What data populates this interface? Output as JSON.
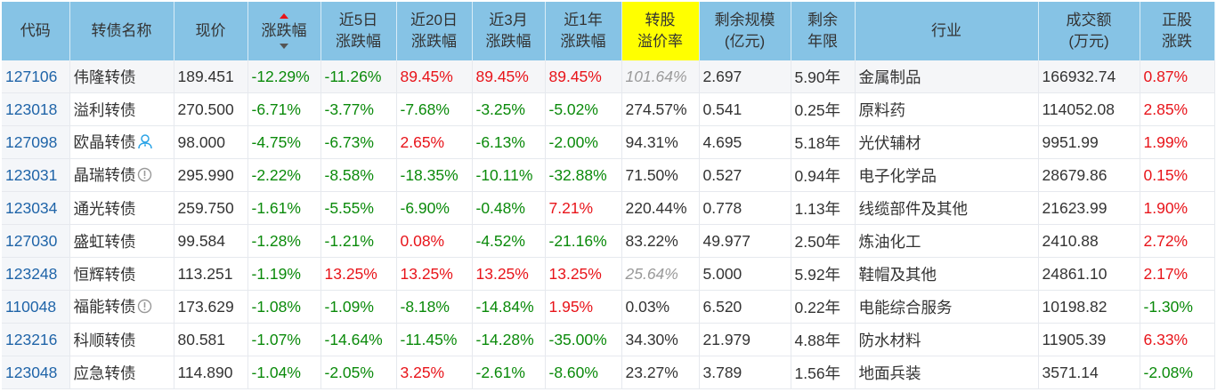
{
  "headers": [
    "代码",
    "转债名称",
    "现价",
    "涨跌幅",
    "近5日\n涨跌幅",
    "近20日\n涨跌幅",
    "近3月\n涨跌幅",
    "近1年\n涨跌幅",
    "转股\n溢价率",
    "剩余规模\n(亿元)",
    "剩余\n年限",
    "行业",
    "成交额\n(万元)",
    "正股\n涨跌"
  ],
  "sort": {
    "column": "涨跌幅",
    "direction": "desc"
  },
  "colors": {
    "header": "#86c3e5",
    "highlight": "#ffff00",
    "up": "#e8141a",
    "down": "#0a8a0a"
  },
  "rows": [
    {
      "code": "127106",
      "name": "伟隆转债",
      "icon": "",
      "price": "189.451",
      "chg": "-12.29%",
      "d5": "-11.26%",
      "d20": "89.45%",
      "m3": "89.45%",
      "y1": "89.45%",
      "prem": "101.64%",
      "prem_italic": true,
      "size": "2.697",
      "years": "5.90年",
      "ind": "金属制品",
      "vol": "166932.74",
      "stk": "0.87%"
    },
    {
      "code": "123018",
      "name": "溢利转债",
      "icon": "",
      "price": "270.500",
      "chg": "-6.71%",
      "d5": "-3.77%",
      "d20": "-7.68%",
      "m3": "-3.25%",
      "y1": "-5.02%",
      "prem": "274.57%",
      "prem_italic": false,
      "size": "0.541",
      "years": "0.25年",
      "ind": "原料药",
      "vol": "114052.08",
      "stk": "2.85%"
    },
    {
      "code": "127098",
      "name": "欧晶转债",
      "icon": "person-icon",
      "price": "98.000",
      "chg": "-4.75%",
      "d5": "-6.73%",
      "d20": "2.65%",
      "m3": "-6.13%",
      "y1": "-2.00%",
      "prem": "94.31%",
      "prem_italic": false,
      "size": "4.695",
      "years": "5.18年",
      "ind": "光伏辅材",
      "vol": "9951.99",
      "stk": "1.99%"
    },
    {
      "code": "123031",
      "name": "晶瑞转债",
      "icon": "alert-icon",
      "price": "295.990",
      "chg": "-2.22%",
      "d5": "-8.58%",
      "d20": "-18.35%",
      "m3": "-10.11%",
      "y1": "-32.88%",
      "prem": "71.50%",
      "prem_italic": false,
      "size": "0.527",
      "years": "0.94年",
      "ind": "电子化学品",
      "vol": "28679.86",
      "stk": "0.15%"
    },
    {
      "code": "123034",
      "name": "通光转债",
      "icon": "",
      "price": "259.750",
      "chg": "-1.61%",
      "d5": "-5.55%",
      "d20": "-6.90%",
      "m3": "-0.48%",
      "y1": "7.21%",
      "prem": "220.44%",
      "prem_italic": false,
      "size": "0.778",
      "years": "1.13年",
      "ind": "线缆部件及其他",
      "vol": "21623.99",
      "stk": "1.90%"
    },
    {
      "code": "127030",
      "name": "盛虹转债",
      "icon": "",
      "price": "99.584",
      "chg": "-1.28%",
      "d5": "-1.21%",
      "d20": "0.08%",
      "m3": "-4.52%",
      "y1": "-21.16%",
      "prem": "83.22%",
      "prem_italic": false,
      "size": "49.977",
      "years": "2.50年",
      "ind": "炼油化工",
      "vol": "2410.88",
      "stk": "2.72%"
    },
    {
      "code": "123248",
      "name": "恒辉转债",
      "icon": "",
      "price": "113.251",
      "chg": "-1.19%",
      "d5": "13.25%",
      "d20": "13.25%",
      "m3": "13.25%",
      "y1": "13.25%",
      "prem": "25.64%",
      "prem_italic": true,
      "size": "5.000",
      "years": "5.92年",
      "ind": "鞋帽及其他",
      "vol": "24861.10",
      "stk": "2.17%"
    },
    {
      "code": "110048",
      "name": "福能转债",
      "icon": "alert-icon",
      "price": "173.629",
      "chg": "-1.08%",
      "d5": "-1.09%",
      "d20": "-8.18%",
      "m3": "-14.84%",
      "y1": "1.95%",
      "prem": "0.03%",
      "prem_italic": false,
      "size": "6.520",
      "years": "0.22年",
      "ind": "电能综合服务",
      "vol": "10198.82",
      "stk": "-1.30%"
    },
    {
      "code": "123216",
      "name": "科顺转债",
      "icon": "",
      "price": "80.581",
      "chg": "-1.07%",
      "d5": "-14.64%",
      "d20": "-11.45%",
      "m3": "-14.28%",
      "y1": "-35.00%",
      "prem": "34.30%",
      "prem_italic": false,
      "size": "21.979",
      "years": "4.88年",
      "ind": "防水材料",
      "vol": "11905.39",
      "stk": "6.33%"
    },
    {
      "code": "123048",
      "name": "应急转债",
      "icon": "",
      "price": "114.890",
      "chg": "-1.04%",
      "d5": "-2.05%",
      "d20": "3.25%",
      "m3": "-2.61%",
      "y1": "-8.60%",
      "prem": "23.27%",
      "prem_italic": false,
      "size": "3.789",
      "years": "1.56年",
      "ind": "地面兵装",
      "vol": "3571.14",
      "stk": "-2.08%"
    }
  ]
}
